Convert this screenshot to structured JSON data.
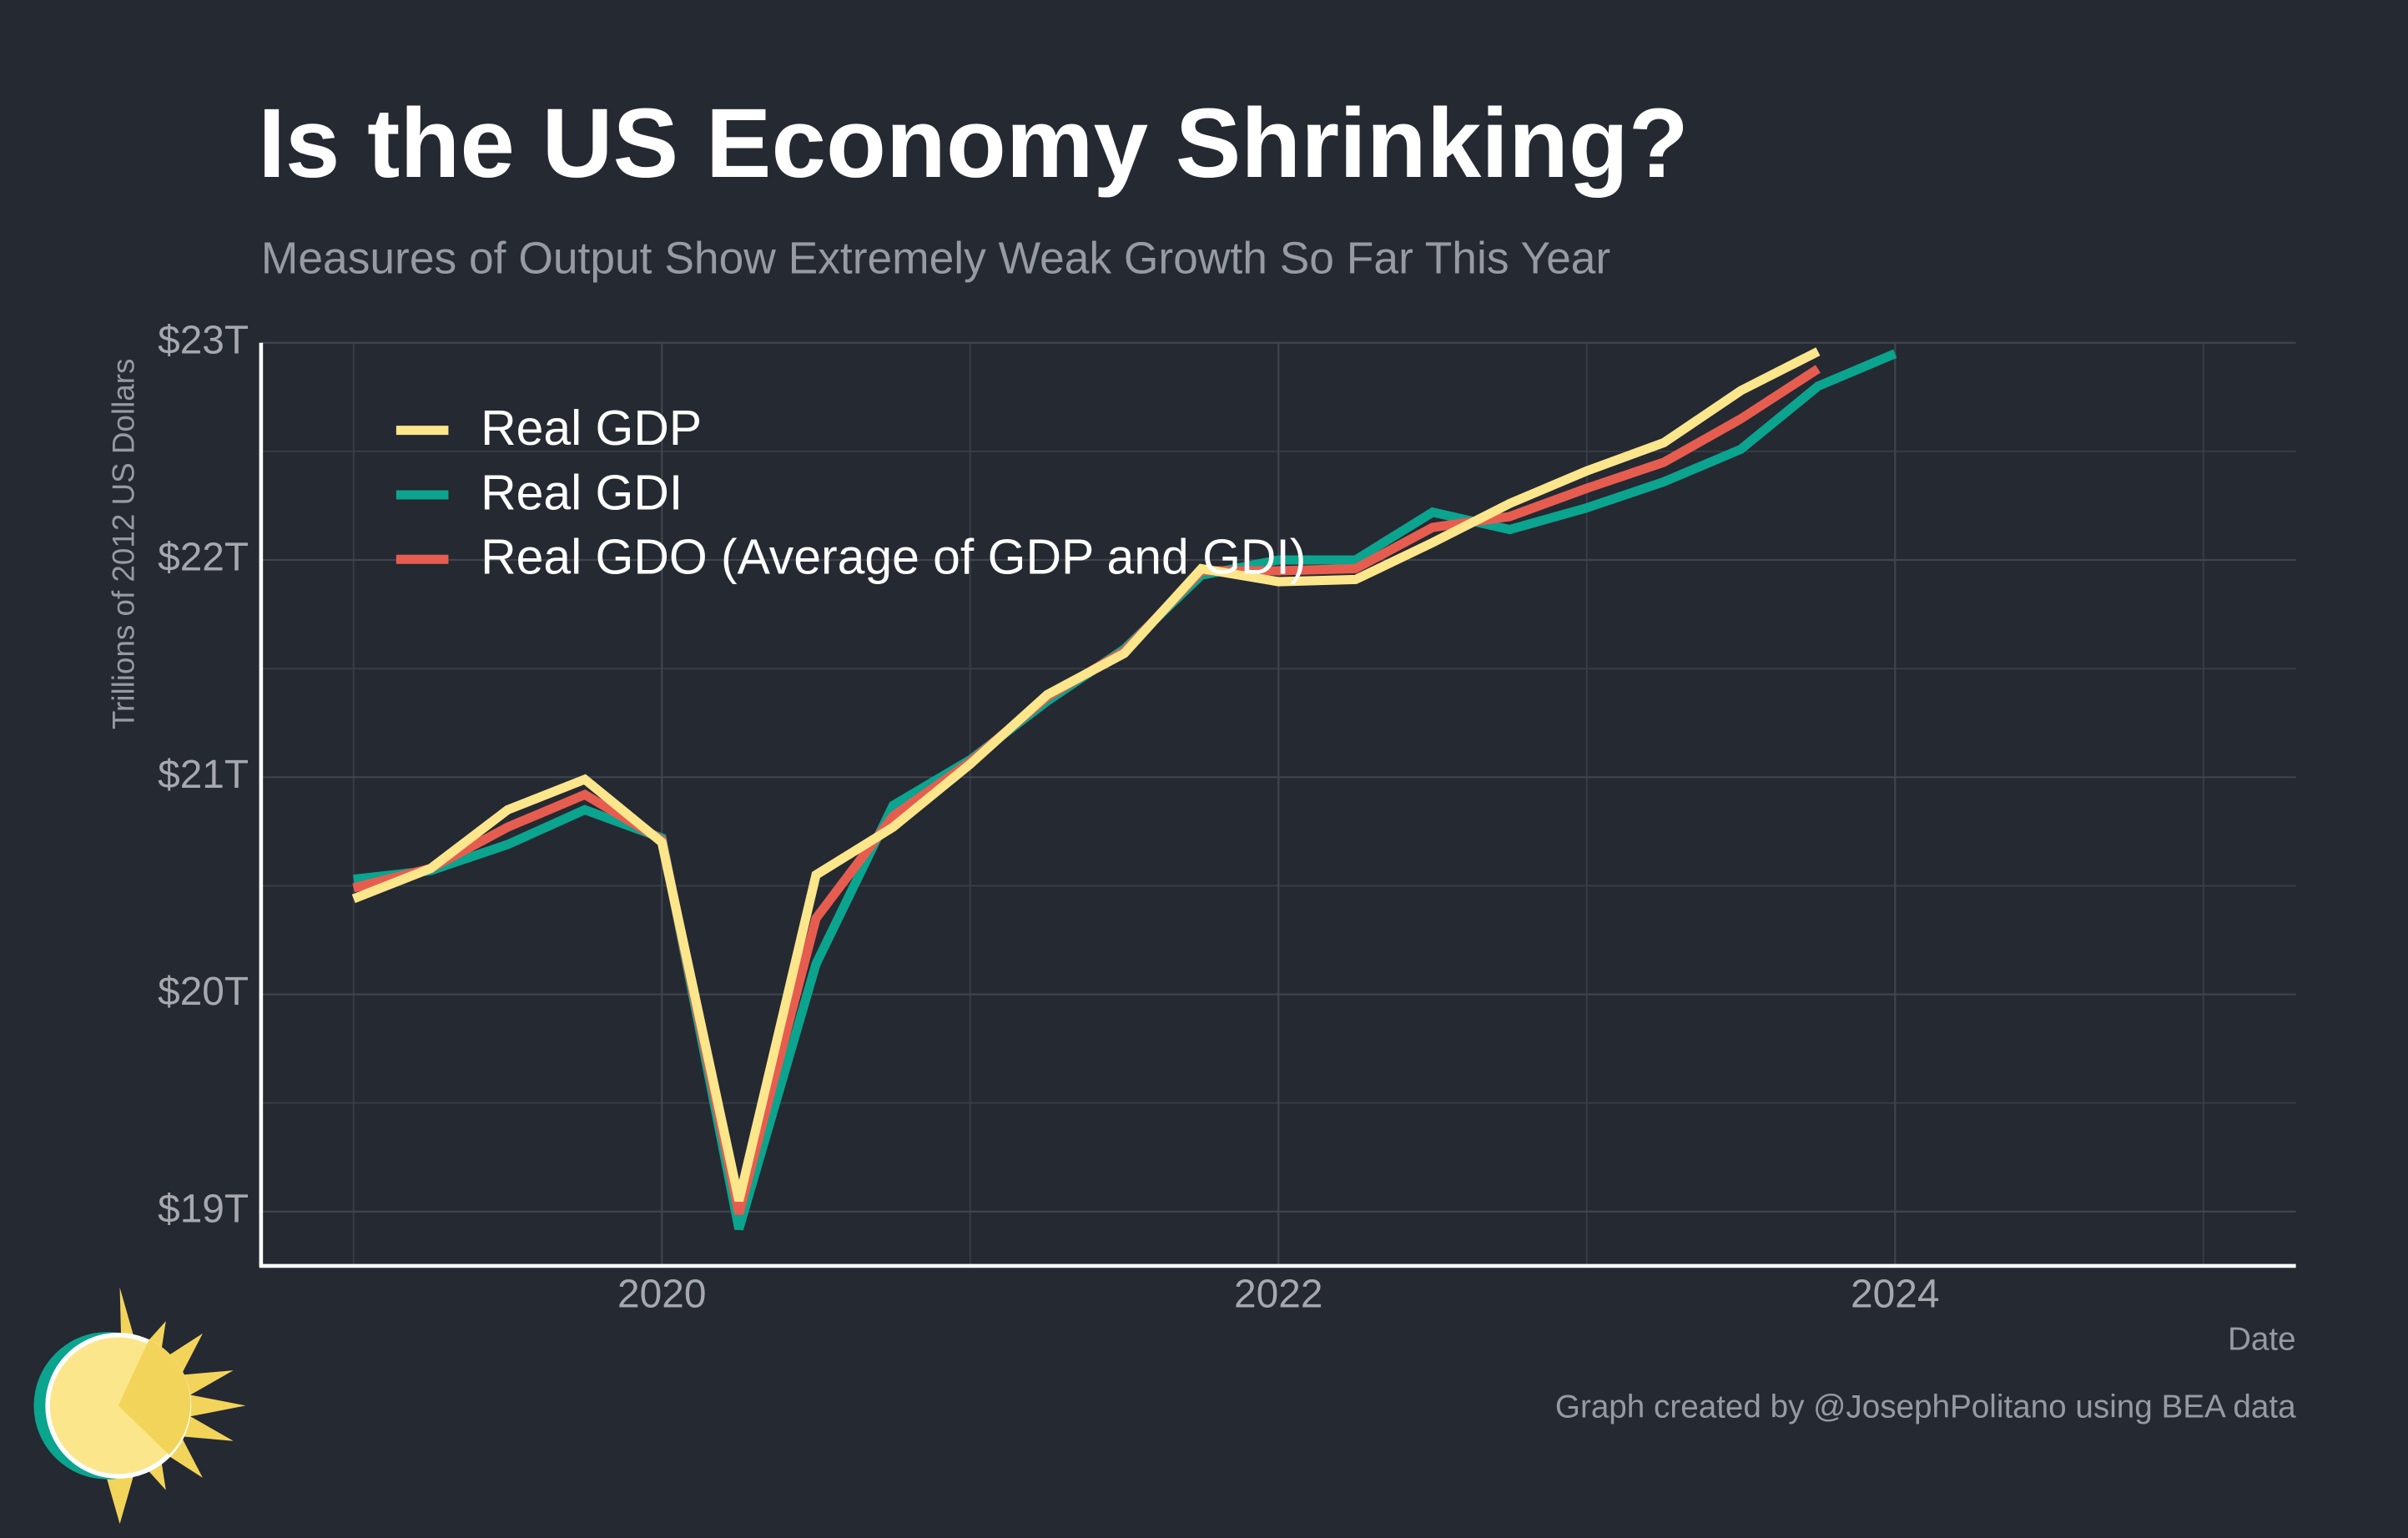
{
  "chart_data": {
    "type": "line",
    "title": "Is the US Economy Shrinking?",
    "subtitle": "Measures of Output Show Extremely Weak Growth So Far This Year",
    "x_label": "Date",
    "y_label": "Trillions of 2012 US Dollars",
    "note": "Graph created by @JosephPolitano using BEA data",
    "x": [
      2019,
      2019.25,
      2019.5,
      2019.75,
      2020,
      2020.25,
      2020.5,
      2020.75,
      2021,
      2021.25,
      2021.5,
      2021.75,
      2022,
      2022.25,
      2022.5,
      2022.75,
      2023,
      2023.25,
      2023.5,
      2023.75,
      2024
    ],
    "series": [
      {
        "name": "Real GDP",
        "color": "#fce68b",
        "values": [
          20.44,
          20.58,
          20.85,
          20.99,
          20.7,
          19.05,
          20.55,
          20.77,
          21.06,
          21.38,
          21.57,
          21.96,
          21.9,
          21.91,
          22.08,
          22.26,
          22.41,
          22.54,
          22.78,
          22.96,
          null
        ]
      },
      {
        "name": "Real GDI",
        "color": "#0ba48e",
        "values": [
          20.53,
          20.57,
          20.69,
          20.85,
          20.72,
          18.92,
          20.14,
          20.87,
          21.08,
          21.35,
          21.59,
          21.93,
          22.0,
          22.0,
          22.22,
          22.14,
          22.24,
          22.36,
          22.51,
          22.8,
          22.95
        ]
      },
      {
        "name": "Real GDO (Average of GDP and GDI)",
        "color": "#e65d4f",
        "values": [
          20.49,
          20.58,
          20.77,
          20.92,
          20.71,
          18.99,
          20.35,
          20.82,
          21.07,
          21.37,
          21.58,
          21.95,
          21.95,
          21.96,
          22.15,
          22.2,
          22.33,
          22.45,
          22.65,
          22.88,
          null
        ]
      }
    ],
    "xlim": [
      2018.7,
      2025.3
    ],
    "ylim": [
      18.75,
      23
    ],
    "xticks": [
      2020,
      2022,
      2024
    ],
    "minor_xticks": [
      2019,
      2021,
      2023,
      2025
    ],
    "yticks": [
      {
        "value": 19,
        "label": "$19T"
      },
      {
        "value": 20,
        "label": "$20T"
      },
      {
        "value": 21,
        "label": "$21T"
      },
      {
        "value": 22,
        "label": "$22T"
      },
      {
        "value": 23,
        "label": "$23T"
      }
    ],
    "minor_yticks": [
      19.5,
      20.5,
      21.5,
      22.5
    ],
    "grid": true,
    "legend": "upper left"
  }
}
